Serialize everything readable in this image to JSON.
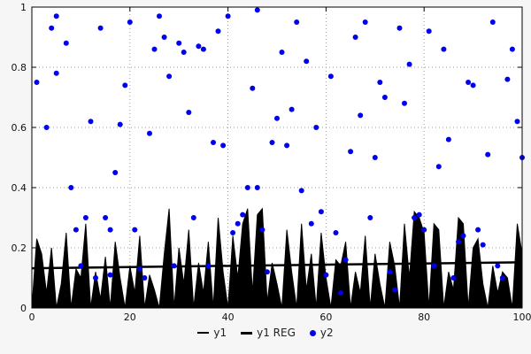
{
  "chart_data": {
    "type": "area",
    "title": "",
    "xlabel": "",
    "ylabel": "",
    "xlim": [
      0,
      100
    ],
    "ylim": [
      0,
      1
    ],
    "grid": true,
    "grid_style": "dotted",
    "legend_position": "bottom-center",
    "x_ticks": [
      0,
      20,
      40,
      60,
      80,
      100
    ],
    "x_tick_labels": [
      "0",
      "20",
      "40",
      "60",
      "80",
      "100"
    ],
    "y_ticks": [
      0,
      0.2,
      0.4,
      0.6,
      0.8,
      1
    ],
    "y_tick_labels": [
      "0",
      "0.2",
      "0.4",
      "0.6",
      "0.8",
      "1"
    ],
    "colors": {
      "series_black": "#000000",
      "series_blue": "#0000ee",
      "grid": "#9a9a9a",
      "plot_bg": "#ffffff",
      "canvas_bg": "#f6f6f6"
    },
    "series": [
      {
        "name": "y1",
        "type": "area",
        "color": "#000000",
        "x_start": 0,
        "x_step": 1,
        "y": [
          0,
          0.23,
          0.18,
          0.05,
          0.2,
          0,
          0.08,
          0.25,
          0,
          0.13,
          0.1,
          0.28,
          0,
          0.12,
          0.03,
          0.17,
          0,
          0.22,
          0.1,
          0,
          0.14,
          0.05,
          0.24,
          0,
          0.11,
          0.06,
          0,
          0.18,
          0.33,
          0,
          0.2,
          0.08,
          0.26,
          0,
          0.15,
          0.05,
          0.22,
          0,
          0.3,
          0.12,
          0,
          0.24,
          0.1,
          0.28,
          0.33,
          0.05,
          0.31,
          0.33,
          0.02,
          0.15,
          0.08,
          0,
          0.26,
          0.12,
          0,
          0.28,
          0.06,
          0.18,
          0,
          0.25,
          0.1,
          0,
          0.16,
          0.14,
          0.22,
          0,
          0.12,
          0.05,
          0.24,
          0,
          0.18,
          0.08,
          0,
          0.22,
          0.14,
          0,
          0.28,
          0.1,
          0.32,
          0.3,
          0.25,
          0,
          0.28,
          0.26,
          0,
          0.12,
          0.06,
          0.3,
          0.28,
          0,
          0.2,
          0.23,
          0.08,
          0,
          0.14,
          0.05,
          0.12,
          0.1,
          0,
          0.28,
          0.18
        ]
      },
      {
        "name": "y1 REG",
        "type": "line",
        "color": "#000000",
        "x": [
          0,
          100
        ],
        "y": [
          0.132,
          0.152
        ]
      },
      {
        "name": "y2",
        "type": "scatter",
        "color": "#0000ee",
        "point_radius": 3,
        "points": [
          [
            1,
            0.75
          ],
          [
            3,
            0.6
          ],
          [
            4,
            0.93
          ],
          [
            5,
            0.97
          ],
          [
            5,
            0.78
          ],
          [
            7,
            0.88
          ],
          [
            8,
            0.4
          ],
          [
            9,
            0.26
          ],
          [
            10,
            0.14
          ],
          [
            11,
            0.3
          ],
          [
            12,
            0.62
          ],
          [
            13,
            0.1
          ],
          [
            14,
            0.93
          ],
          [
            15,
            0.3
          ],
          [
            16,
            0.26
          ],
          [
            16,
            0.11
          ],
          [
            17,
            0.45
          ],
          [
            18,
            0.61
          ],
          [
            19,
            0.74
          ],
          [
            20,
            0.95
          ],
          [
            21,
            0.26
          ],
          [
            22,
            0.13
          ],
          [
            23,
            0.1
          ],
          [
            24,
            0.58
          ],
          [
            25,
            0.86
          ],
          [
            26,
            0.97
          ],
          [
            27,
            0.9
          ],
          [
            28,
            0.77
          ],
          [
            29,
            0.14
          ],
          [
            30,
            0.88
          ],
          [
            31,
            0.85
          ],
          [
            32,
            0.65
          ],
          [
            33,
            0.3
          ],
          [
            34,
            0.87
          ],
          [
            35,
            0.86
          ],
          [
            36,
            0.14
          ],
          [
            37,
            0.55
          ],
          [
            38,
            0.92
          ],
          [
            39,
            0.54
          ],
          [
            40,
            0.97
          ],
          [
            41,
            0.25
          ],
          [
            42,
            0.28
          ],
          [
            43,
            0.31
          ],
          [
            44,
            0.4
          ],
          [
            45,
            0.73
          ],
          [
            46,
            0.99
          ],
          [
            46,
            0.4
          ],
          [
            47,
            0.26
          ],
          [
            48,
            0.12
          ],
          [
            49,
            0.55
          ],
          [
            50,
            0.63
          ],
          [
            51,
            0.85
          ],
          [
            52,
            0.54
          ],
          [
            53,
            0.66
          ],
          [
            54,
            0.95
          ],
          [
            55,
            0.39
          ],
          [
            56,
            0.82
          ],
          [
            57,
            0.28
          ],
          [
            58,
            0.6
          ],
          [
            59,
            0.32
          ],
          [
            60,
            0.11
          ],
          [
            61,
            0.77
          ],
          [
            62,
            0.25
          ],
          [
            63,
            0.05
          ],
          [
            64,
            0.16
          ],
          [
            65,
            0.52
          ],
          [
            66,
            0.9
          ],
          [
            67,
            0.64
          ],
          [
            68,
            0.95
          ],
          [
            69,
            0.3
          ],
          [
            70,
            0.5
          ],
          [
            71,
            0.75
          ],
          [
            72,
            0.7
          ],
          [
            73,
            0.12
          ],
          [
            74,
            0.06
          ],
          [
            75,
            0.93
          ],
          [
            76,
            0.68
          ],
          [
            77,
            0.81
          ],
          [
            78,
            0.3
          ],
          [
            79,
            0.31
          ],
          [
            80,
            0.26
          ],
          [
            81,
            0.92
          ],
          [
            82,
            0.14
          ],
          [
            83,
            0.47
          ],
          [
            84,
            0.86
          ],
          [
            85,
            0.56
          ],
          [
            86,
            0.1
          ],
          [
            87,
            0.22
          ],
          [
            88,
            0.24
          ],
          [
            89,
            0.75
          ],
          [
            90,
            0.74
          ],
          [
            91,
            0.26
          ],
          [
            92,
            0.21
          ],
          [
            93,
            0.51
          ],
          [
            94,
            0.95
          ],
          [
            95,
            0.14
          ],
          [
            96,
            0.1
          ],
          [
            97,
            0.76
          ],
          [
            98,
            0.86
          ],
          [
            99,
            0.62
          ],
          [
            100,
            0.5
          ]
        ]
      }
    ]
  }
}
